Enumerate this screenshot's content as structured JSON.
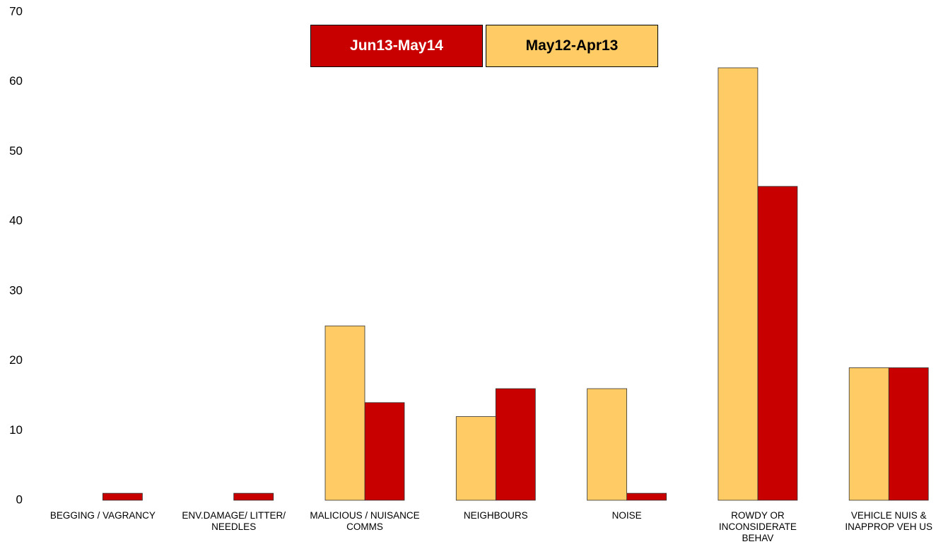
{
  "chart_data": {
    "type": "bar",
    "categories": [
      "BEGGING / VAGRANCY",
      "ENV.DAMAGE/ LITTER/ NEEDLES",
      "MALICIOUS / NUISANCE COMMS",
      "NEIGHBOURS",
      "NOISE",
      "ROWDY OR INCONSIDERATE BEHAV",
      "VEHICLE NUIS & INAPPROP VEH US"
    ],
    "series": [
      {
        "name": "Jun13-May14",
        "color": "#c80000",
        "values": [
          1,
          1,
          14,
          16,
          1,
          45,
          19
        ]
      },
      {
        "name": "May12-Apr13",
        "color": "#fecb65",
        "values": [
          0,
          0,
          25,
          12,
          16,
          62,
          19
        ]
      }
    ],
    "ylim": [
      0,
      70
    ],
    "yticks": [
      0,
      10,
      20,
      30,
      40,
      50,
      60,
      70
    ],
    "legend": "top"
  }
}
